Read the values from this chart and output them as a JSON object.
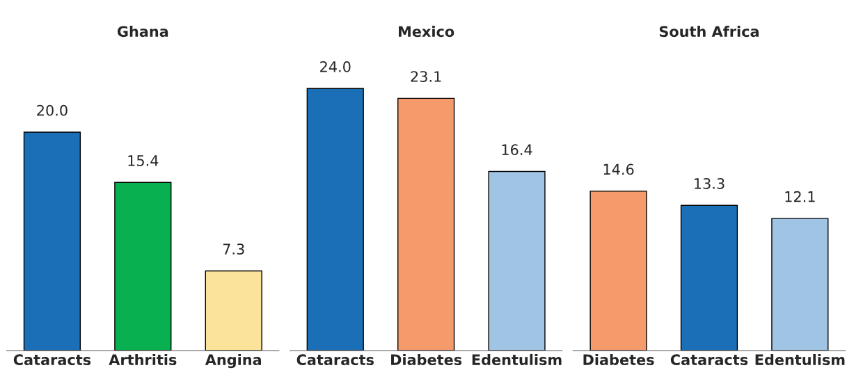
{
  "chart_data": [
    {
      "type": "bar",
      "title": "Ghana",
      "categories": [
        "Cataracts",
        "Arthritis",
        "Angina"
      ],
      "values": [
        20.0,
        15.4,
        7.3
      ],
      "value_labels": [
        "20.0",
        "15.4",
        "7.3"
      ],
      "colors": [
        "#1b6fb7",
        "#08b04f",
        "#fbe49a"
      ],
      "grid": false,
      "legend": false,
      "tick_labels": "x"
    },
    {
      "type": "bar",
      "title": "Mexico",
      "categories": [
        "Cataracts",
        "Diabetes",
        "Edentulism"
      ],
      "values": [
        24.0,
        23.1,
        16.4
      ],
      "value_labels": [
        "24.0",
        "23.1",
        "16.4"
      ],
      "colors": [
        "#1b6fb7",
        "#f59a6a",
        "#a0c4e4"
      ],
      "grid": false,
      "legend": false,
      "tick_labels": "x"
    },
    {
      "type": "bar",
      "title": "South Africa",
      "categories": [
        "Diabetes",
        "Cataracts",
        "Edentulism"
      ],
      "values": [
        14.6,
        13.3,
        12.1
      ],
      "value_labels": [
        "14.6",
        "13.3",
        "12.1"
      ],
      "colors": [
        "#f59a6a",
        "#1b6fb7",
        "#a0c4e4"
      ],
      "grid": false,
      "legend": false,
      "tick_labels": "x"
    }
  ]
}
